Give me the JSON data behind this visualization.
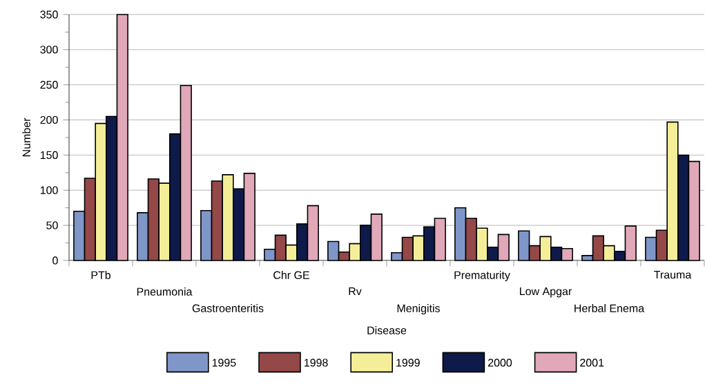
{
  "chart_data": {
    "type": "bar",
    "xlabel": "Disease",
    "ylabel": "Number",
    "categories": [
      "PTb",
      "Pneumonia",
      "Gastroenteritis",
      "Chr GE",
      "Rv",
      "Menigitis",
      "Prematurity",
      "Low Apgar",
      "Herbal Enema",
      "Trauma"
    ],
    "series": [
      {
        "name": "1995",
        "color": "#7f96c8",
        "values": [
          70,
          68,
          71,
          16,
          27,
          11,
          75,
          42,
          7,
          33
        ]
      },
      {
        "name": "1998",
        "color": "#944848",
        "values": [
          117,
          116,
          113,
          36,
          12,
          33,
          60,
          21,
          35,
          43
        ]
      },
      {
        "name": "1999",
        "color": "#f4ee98",
        "values": [
          195,
          110,
          122,
          22,
          24,
          35,
          46,
          34,
          21,
          197
        ]
      },
      {
        "name": "2000",
        "color": "#0e1a4a",
        "values": [
          205,
          180,
          102,
          52,
          50,
          48,
          19,
          19,
          13,
          150
        ]
      },
      {
        "name": "2001",
        "color": "#e0a8b8",
        "values": [
          350,
          249,
          124,
          78,
          66,
          60,
          37,
          17,
          49,
          141
        ]
      }
    ],
    "ylim": [
      0,
      350
    ],
    "yticks": [
      0,
      50,
      100,
      150,
      200,
      250,
      300,
      350
    ],
    "grid": "y",
    "legend": "bottom"
  }
}
